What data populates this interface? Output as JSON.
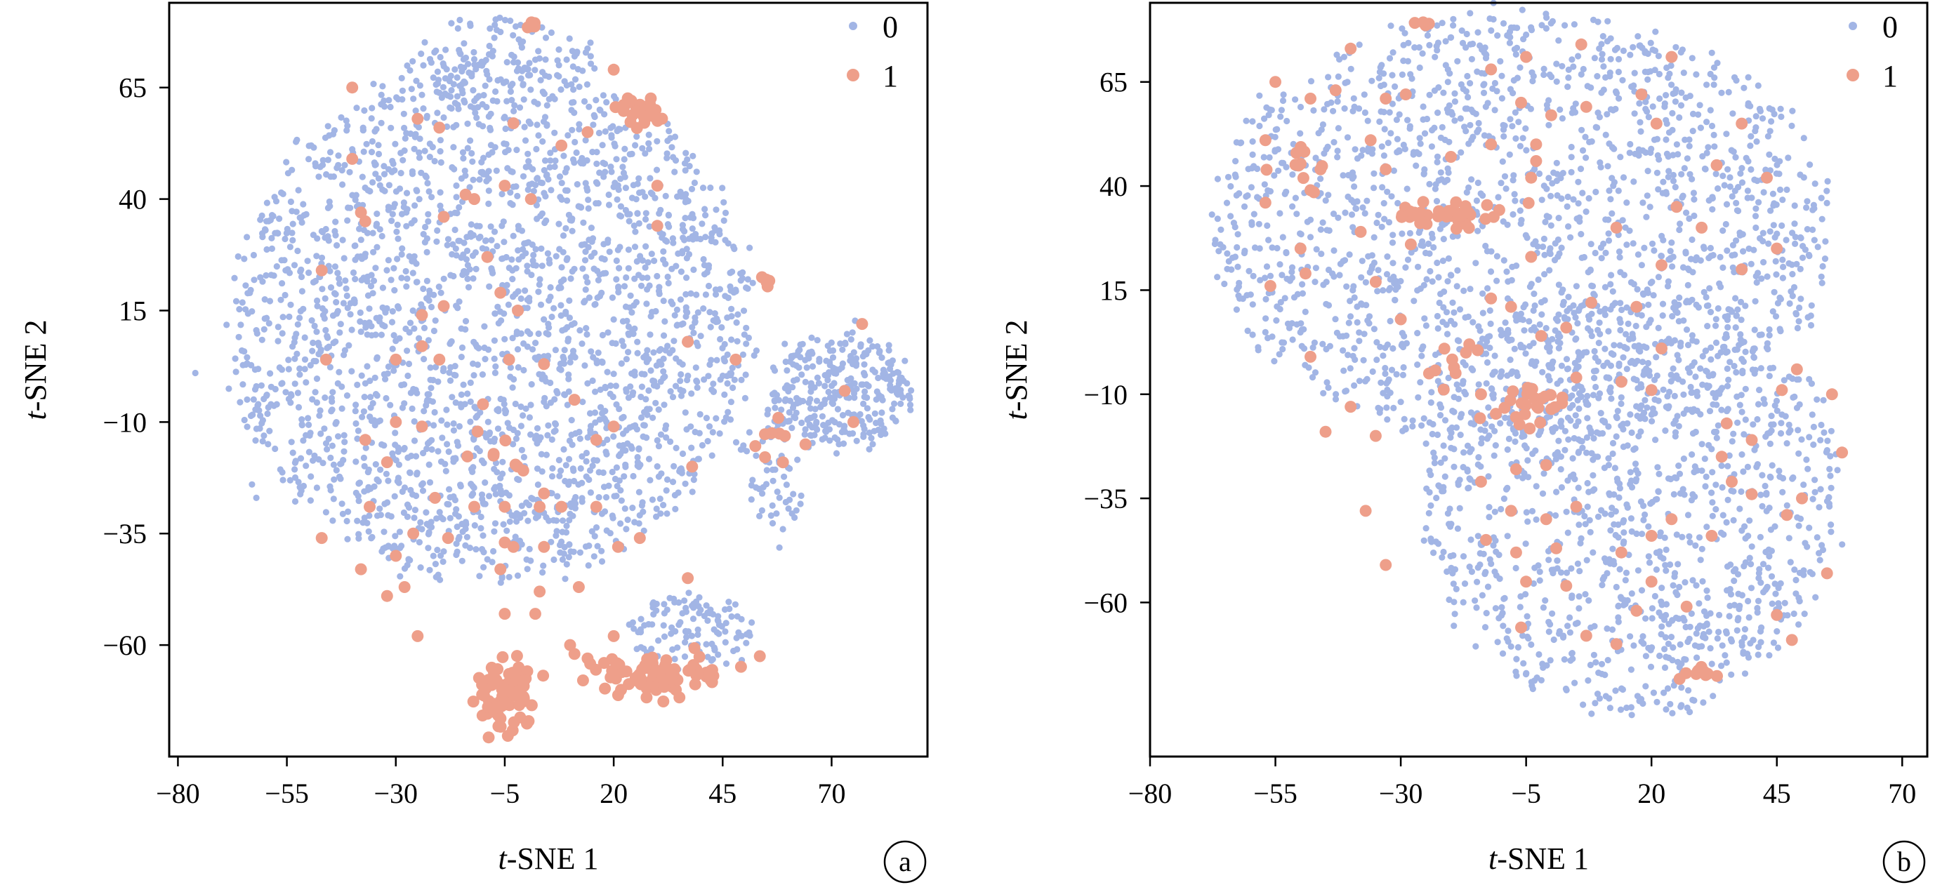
{
  "figure": {
    "colors": {
      "class_0": "#a2b5e5",
      "class_1": "#ee9f8a",
      "axis": "#000000",
      "background": "#ffffff"
    }
  },
  "chart_data": [
    {
      "type": "scatter",
      "panel_label": "a",
      "xlabel_italic": "t",
      "xlabel_rest": "-SNE 1",
      "ylabel_italic": "t",
      "ylabel_rest": "-SNE 2",
      "xlim": [
        -82,
        92
      ],
      "ylim": [
        -85,
        84
      ],
      "xticks": [
        -80,
        -55,
        -30,
        -5,
        20,
        45,
        70
      ],
      "xtick_labels": [
        "−80",
        "−55",
        "−30",
        "−5",
        "20",
        "45",
        "70"
      ],
      "yticks": [
        65,
        40,
        15,
        -10,
        -35,
        -60
      ],
      "ytick_labels": [
        "65",
        "40",
        "15",
        "−10",
        "−35",
        "−60"
      ],
      "grid": false,
      "legend_position": "top-right",
      "series": [
        {
          "name": "0",
          "color": "#a2b5e5",
          "cloud_regions": [
            {
              "cx": -8,
              "cy": 12,
              "rx": 60,
              "ry": 58,
              "n": 2300
            },
            {
              "cx": 72,
              "cy": -3,
              "rx": 16,
              "ry": 13,
              "n": 300
            },
            {
              "cx": 57,
              "cy": -22,
              "rx": 7,
              "ry": 14,
              "n": 60
            },
            {
              "cx": 38,
              "cy": -57,
              "rx": 14,
              "ry": 8,
              "n": 120
            },
            {
              "cx": -5,
              "cy": 70,
              "rx": 22,
              "ry": 10,
              "n": 150
            }
          ],
          "outlier_points": [
            [
              -76,
              1
            ],
            [
              -63,
              -24
            ],
            [
              -62,
              -27
            ],
            [
              -62,
              -2
            ]
          ]
        },
        {
          "name": "1",
          "color": "#ee9f8a",
          "clusters": [
            {
              "cx": -5,
              "cy": -72,
              "sx": 3.2,
              "sy": 4,
              "n": 70
            },
            {
              "cx": 30,
              "cy": -67,
              "sx": 8,
              "sy": 2.2,
              "n": 90
            },
            {
              "cx": 27,
              "cy": 60,
              "sx": 3,
              "sy": 1.8,
              "n": 22
            },
            {
              "cx": 1,
              "cy": 79,
              "sx": 1,
              "sy": 0.6,
              "n": 5
            },
            {
              "cx": 55,
              "cy": 21,
              "sx": 0.8,
              "sy": 0.8,
              "n": 5
            },
            {
              "cx": 57,
              "cy": -15,
              "sx": 2,
              "sy": 4,
              "n": 8
            },
            {
              "cx": -3,
              "cy": -17,
              "sx": 5,
              "sy": 4,
              "n": 8
            }
          ],
          "points": [
            [
              -40,
              65
            ],
            [
              -40,
              49
            ],
            [
              -47,
              24
            ],
            [
              -37,
              35
            ],
            [
              -38,
              37
            ],
            [
              -25,
              58
            ],
            [
              -20,
              56
            ],
            [
              -14,
              41
            ],
            [
              -12,
              40
            ],
            [
              -5,
              43
            ],
            [
              -3,
              57
            ],
            [
              1,
              40
            ],
            [
              8,
              52
            ],
            [
              14,
              55
            ],
            [
              20,
              69
            ],
            [
              30,
              34
            ],
            [
              30,
              43
            ],
            [
              -19,
              36
            ],
            [
              -19,
              16
            ],
            [
              -24,
              14
            ],
            [
              -24,
              7
            ],
            [
              -20,
              4
            ],
            [
              -46,
              4
            ],
            [
              -30,
              4
            ],
            [
              -24,
              -11
            ],
            [
              -37,
              -14
            ],
            [
              -32,
              -19
            ],
            [
              -36,
              -29
            ],
            [
              -21,
              -27
            ],
            [
              -12,
              -29
            ],
            [
              -5,
              -29
            ],
            [
              3,
              -29
            ],
            [
              4,
              -26
            ],
            [
              8,
              -29
            ],
            [
              16,
              -29
            ],
            [
              -18,
              -36
            ],
            [
              -26,
              -35
            ],
            [
              -30,
              -40
            ],
            [
              -38,
              -43
            ],
            [
              -28,
              -47
            ],
            [
              -32,
              -49
            ],
            [
              -25,
              -58
            ],
            [
              -47,
              -36
            ],
            [
              -3,
              -38
            ],
            [
              -6,
              -43
            ],
            [
              3,
              -48
            ],
            [
              -5,
              -53
            ],
            [
              2,
              -53
            ],
            [
              10,
              -60
            ],
            [
              11,
              -62
            ],
            [
              14,
              -63
            ],
            [
              20,
              -58
            ],
            [
              26,
              -36
            ],
            [
              21,
              -38
            ],
            [
              4,
              -38
            ],
            [
              -5,
              -37
            ],
            [
              37,
              -45
            ],
            [
              38,
              -20
            ],
            [
              37,
              8
            ],
            [
              48,
              4
            ],
            [
              77,
              12
            ],
            [
              73,
              -3
            ],
            [
              75,
              -10
            ],
            [
              64,
              -15
            ],
            [
              -10,
              -6
            ],
            [
              -4,
              4
            ],
            [
              4,
              3
            ],
            [
              11,
              -5
            ],
            [
              16,
              -14
            ],
            [
              20,
              -11
            ],
            [
              -9,
              27
            ],
            [
              -2,
              15
            ],
            [
              -30,
              -10
            ],
            [
              12,
              -47
            ],
            [
              -6,
              19
            ]
          ]
        }
      ]
    },
    {
      "type": "scatter",
      "panel_label": "b",
      "xlabel_italic": "t",
      "xlabel_rest": "-SNE 1",
      "ylabel_italic": "t",
      "ylabel_rest": "-SNE 2",
      "xlim": [
        -80,
        75
      ],
      "ylim": [
        -97,
        84
      ],
      "xticks": [
        -80,
        -55,
        -30,
        -5,
        20,
        45,
        70
      ],
      "xtick_labels": [
        "−80",
        "−55",
        "−30",
        "−5",
        "20",
        "45",
        "70"
      ],
      "yticks": [
        65,
        40,
        15,
        -10,
        -35,
        -60
      ],
      "ytick_labels": [
        "65",
        "40",
        "15",
        "−10",
        "−35",
        "−60"
      ],
      "grid": false,
      "legend_position": "top-right",
      "series": [
        {
          "name": "0",
          "color": "#a2b5e5",
          "cloud_regions": [
            {
              "cx": -6,
              "cy": 30,
              "rx": 62,
              "ry": 52,
              "n": 1700
            },
            {
              "cx": 16,
              "cy": -35,
              "rx": 42,
              "ry": 52,
              "n": 1200
            }
          ],
          "outlier_points": [
            [
              -66,
              26
            ],
            [
              -63,
              23
            ]
          ]
        },
        {
          "name": "1",
          "color": "#ee9f8a",
          "clusters": [
            {
              "cx": -22,
              "cy": 33,
              "sx": 6,
              "sy": 1.4,
              "n": 35
            },
            {
              "cx": -5,
              "cy": -13,
              "sx": 3.5,
              "sy": 2.5,
              "n": 25
            },
            {
              "cx": -25,
              "cy": 79,
              "sx": 1,
              "sy": 0.5,
              "n": 4
            },
            {
              "cx": 30,
              "cy": -77,
              "sx": 2.2,
              "sy": 1.2,
              "n": 10
            },
            {
              "cx": -50,
              "cy": 46,
              "sx": 4,
              "sy": 3,
              "n": 10
            },
            {
              "cx": -20,
              "cy": -3,
              "sx": 4,
              "sy": 3,
              "n": 9
            }
          ],
          "points": [
            [
              -55,
              65
            ],
            [
              -48,
              61
            ],
            [
              -57,
              51
            ],
            [
              -43,
              63
            ],
            [
              -40,
              73
            ],
            [
              -33,
              61
            ],
            [
              -29,
              62
            ],
            [
              -12,
              68
            ],
            [
              -5,
              71
            ],
            [
              -6,
              60
            ],
            [
              0,
              57
            ],
            [
              7,
              59
            ],
            [
              18,
              62
            ],
            [
              21,
              55
            ],
            [
              24,
              71
            ],
            [
              6,
              74
            ],
            [
              -3,
              46
            ],
            [
              -3,
              50
            ],
            [
              -4,
              42
            ],
            [
              -12,
              50
            ],
            [
              -20,
              47
            ],
            [
              -33,
              44
            ],
            [
              -36,
              51
            ],
            [
              -46,
              44
            ],
            [
              -48,
              39
            ],
            [
              -57,
              36
            ],
            [
              -50,
              25
            ],
            [
              -49,
              19
            ],
            [
              -56,
              16
            ],
            [
              -38,
              29
            ],
            [
              -28,
              26
            ],
            [
              -35,
              17
            ],
            [
              -30,
              8
            ],
            [
              -12,
              13
            ],
            [
              -8,
              11
            ],
            [
              -2,
              4
            ],
            [
              3,
              6
            ],
            [
              8,
              12
            ],
            [
              17,
              11
            ],
            [
              22,
              21
            ],
            [
              25,
              35
            ],
            [
              33,
              45
            ],
            [
              38,
              55
            ],
            [
              43,
              42
            ],
            [
              45,
              25
            ],
            [
              38,
              20
            ],
            [
              30,
              30
            ],
            [
              13,
              30
            ],
            [
              -4,
              23
            ],
            [
              -40,
              -13
            ],
            [
              -35,
              -20
            ],
            [
              -45,
              -19
            ],
            [
              -48,
              -1
            ],
            [
              -33,
              -51
            ],
            [
              -37,
              -38
            ],
            [
              -14,
              -10
            ],
            [
              -14,
              -31
            ],
            [
              -8,
              -38
            ],
            [
              -1,
              -40
            ],
            [
              1,
              -47
            ],
            [
              -7,
              -48
            ],
            [
              -13,
              -45
            ],
            [
              -5,
              -55
            ],
            [
              3,
              -56
            ],
            [
              -6,
              -66
            ],
            [
              7,
              -68
            ],
            [
              13,
              -70
            ],
            [
              17,
              -62
            ],
            [
              20,
              -55
            ],
            [
              27,
              -61
            ],
            [
              14,
              -48
            ],
            [
              20,
              -44
            ],
            [
              24,
              -40
            ],
            [
              32,
              -44
            ],
            [
              36,
              -31
            ],
            [
              40,
              -34
            ],
            [
              47,
              -39
            ],
            [
              40,
              -21
            ],
            [
              34,
              -25
            ],
            [
              46,
              -9
            ],
            [
              49,
              -4
            ],
            [
              56,
              -10
            ],
            [
              58,
              -24
            ],
            [
              50,
              -35
            ],
            [
              55,
              -53
            ],
            [
              45,
              -63
            ],
            [
              48,
              -69
            ],
            [
              35,
              -17
            ],
            [
              20,
              -9
            ],
            [
              14,
              -7
            ],
            [
              5,
              -6
            ],
            [
              -7,
              -28
            ],
            [
              -1,
              -27
            ],
            [
              -17,
              0
            ],
            [
              22,
              1
            ],
            [
              5,
              -37
            ]
          ]
        }
      ]
    }
  ]
}
